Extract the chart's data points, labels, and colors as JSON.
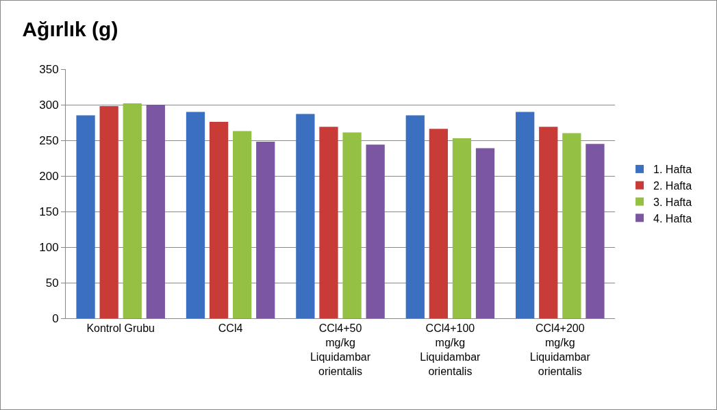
{
  "chart_data": {
    "type": "bar",
    "title": "Ağırlık (g)",
    "categories": [
      "Kontrol Grubu",
      "CCl4",
      "CCl4+50 mg/kg Liquidambar orientalis",
      "CCl4+100 mg/kg Liquidambar orientalis",
      "CCl4+200 mg/kg Liquidambar orientalis"
    ],
    "series": [
      {
        "name": "1. Hafta",
        "color": "#3b6fbf",
        "values": [
          285,
          290,
          287,
          285,
          290
        ]
      },
      {
        "name": "2. Hafta",
        "color": "#c83b36",
        "values": [
          298,
          276,
          269,
          266,
          269
        ]
      },
      {
        "name": "3. Hafta",
        "color": "#94c043",
        "values": [
          302,
          263,
          261,
          253,
          260
        ]
      },
      {
        "name": "4. Hafta",
        "color": "#7b57a3",
        "values": [
          300,
          248,
          244,
          239,
          245
        ]
      }
    ],
    "ylim": [
      0,
      350
    ],
    "yticks": [
      0,
      50,
      100,
      150,
      200,
      250,
      300,
      350
    ],
    "grid": "y",
    "legend": "right"
  }
}
